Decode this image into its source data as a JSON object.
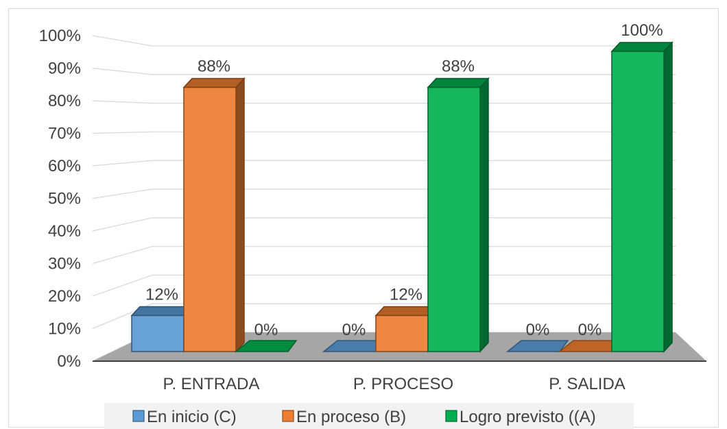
{
  "chart_data": {
    "type": "bar",
    "title": "",
    "xlabel": "",
    "ylabel": "",
    "ylim": [
      0,
      100
    ],
    "y_ticks": [
      "0%",
      "10%",
      "20%",
      "30%",
      "40%",
      "50%",
      "60%",
      "70%",
      "80%",
      "90%",
      "100%"
    ],
    "categories": [
      "P. ENTRADA",
      "P. PROCESO",
      "P. SALIDA"
    ],
    "series": [
      {
        "name": "En inicio (C)",
        "values": [
          12,
          0,
          0
        ],
        "labels": [
          "12%",
          "0%",
          "0%"
        ],
        "color": "#5b9bd5"
      },
      {
        "name": "En proceso (B)",
        "values": [
          88,
          12,
          0
        ],
        "labels": [
          "88%",
          "12%",
          "0%"
        ],
        "color": "#ed7d31"
      },
      {
        "name": "Logro previsto ((A)",
        "values": [
          0,
          88,
          100
        ],
        "labels": [
          "0%",
          "88%",
          "100%"
        ],
        "color": "#00b050"
      }
    ],
    "grid": true,
    "legend": "bottom",
    "style": "3d-column"
  }
}
